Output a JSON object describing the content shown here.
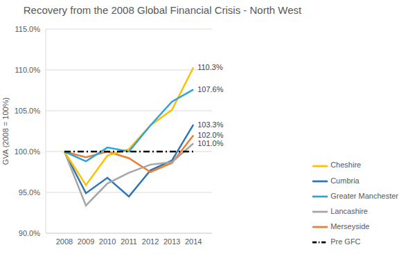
{
  "chart_data": {
    "type": "line",
    "title": "Recovery from the 2008 Global Financial Crisis - North West",
    "y_label": "GVA (2008 = 100%)",
    "categories": [
      "2008",
      "2009",
      "2010",
      "2011",
      "2012",
      "2013",
      "2014"
    ],
    "ylim": [
      90,
      115
    ],
    "yticks": [
      {
        "value": 90,
        "label": "90.0%"
      },
      {
        "value": 95,
        "label": "95.0%"
      },
      {
        "value": 100,
        "label": "100.0%"
      },
      {
        "value": 105,
        "label": "105.0%"
      },
      {
        "value": 110,
        "label": "110.0%"
      },
      {
        "value": 115,
        "label": "115.0%"
      }
    ],
    "grid": true,
    "legend": "right",
    "series": [
      {
        "name": "Cumbria",
        "color": "#2E75B6",
        "values": [
          100,
          94.9,
          96.8,
          94.5,
          97.7,
          98.9,
          103.3
        ],
        "value_labels": [
          null,
          null,
          null,
          null,
          null,
          null,
          "103.3%"
        ]
      },
      {
        "name": "Merseyside",
        "color": "#ED7D31",
        "values": [
          100,
          99.3,
          100.0,
          99.2,
          97.5,
          98.6,
          102.0
        ],
        "value_labels": [
          null,
          null,
          null,
          null,
          null,
          null,
          "102.0%"
        ]
      },
      {
        "name": "Lancashire",
        "color": "#A5A5A5",
        "values": [
          100,
          93.4,
          96.1,
          97.4,
          98.4,
          98.7,
          101.0
        ],
        "value_labels": [
          null,
          null,
          null,
          null,
          null,
          null,
          "101.0%"
        ]
      },
      {
        "name": "Cheshire",
        "color": "#FFC000",
        "values": [
          100,
          95.9,
          99.5,
          100.3,
          103.2,
          105.1,
          110.3
        ],
        "value_labels": [
          null,
          null,
          null,
          null,
          null,
          null,
          "110.3%"
        ]
      },
      {
        "name": "Greater Manchester",
        "color": "#2EA3DB",
        "values": [
          100,
          98.8,
          100.5,
          100.0,
          103.2,
          106.1,
          107.6
        ],
        "value_labels": [
          null,
          null,
          null,
          null,
          null,
          null,
          "107.6%"
        ]
      },
      {
        "name": "Pre GFC",
        "color": "#000000",
        "values": [
          100,
          100,
          100,
          100,
          100,
          100,
          100
        ],
        "line_style": "dashdot"
      }
    ]
  }
}
